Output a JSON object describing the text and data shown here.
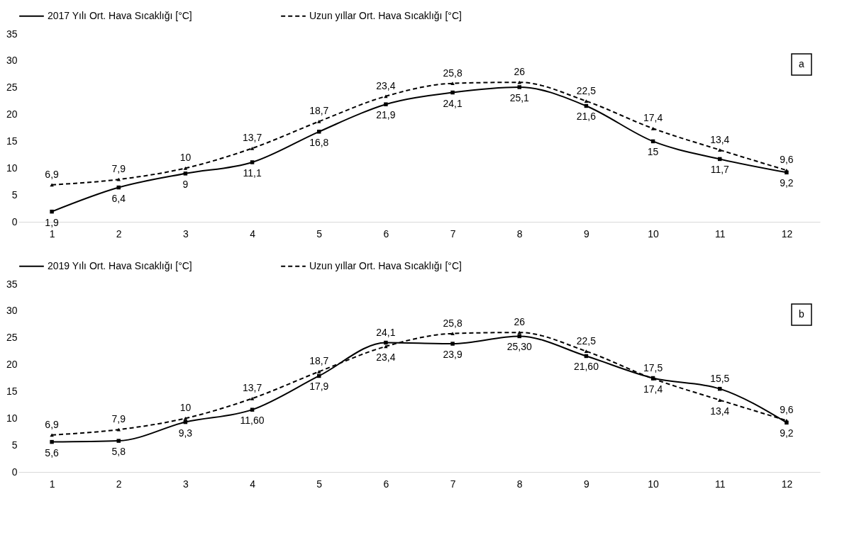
{
  "chart_data": [
    {
      "type": "line",
      "categories": [
        "1",
        "2",
        "3",
        "4",
        "5",
        "6",
        "7",
        "8",
        "9",
        "10",
        "11",
        "12"
      ],
      "ylim": [
        0,
        35
      ],
      "yticks": [
        0,
        5,
        10,
        15,
        20,
        25,
        30,
        35
      ],
      "grid": false,
      "legend": "top",
      "annotations": [
        "a"
      ],
      "series": [
        {
          "name": "2017 Yılı Ort. Hava Sıcaklığı [°C]",
          "color": "#000000",
          "marker": "square",
          "line_style": "solid",
          "values": [
            1.9,
            6.4,
            9,
            11.1,
            16.8,
            21.9,
            24.1,
            25.1,
            21.6,
            15,
            11.7,
            9.2
          ],
          "value_labels": [
            "1,9",
            "6,4",
            "9",
            "11,1",
            "16,8",
            "21,9",
            "24,1",
            "25,1",
            "21,6",
            "15",
            "11,7",
            "9,2"
          ]
        },
        {
          "name": "Uzun yıllar Ort. Hava Sıcaklığı [°C]",
          "color": "#000000",
          "marker": "triangle",
          "line_style": "dashed",
          "values": [
            6.9,
            7.9,
            10,
            13.7,
            18.7,
            23.4,
            25.8,
            26,
            22.5,
            17.4,
            13.4,
            9.6
          ],
          "value_labels": [
            "6,9",
            "7,9",
            "10",
            "13,7",
            "18,7",
            "23,4",
            "25,8",
            "26",
            "22,5",
            "17,4",
            "13,4",
            "9,6"
          ]
        }
      ]
    },
    {
      "type": "line",
      "categories": [
        "1",
        "2",
        "3",
        "4",
        "5",
        "6",
        "7",
        "8",
        "9",
        "10",
        "11",
        "12"
      ],
      "ylim": [
        0,
        35
      ],
      "yticks": [
        0,
        5,
        10,
        15,
        20,
        25,
        30,
        35
      ],
      "grid": false,
      "legend": "top",
      "annotations": [
        "b"
      ],
      "series": [
        {
          "name": "2019 Yılı Ort. Hava Sıcaklığı [°C]",
          "color": "#000000",
          "marker": "square",
          "line_style": "solid",
          "values": [
            5.6,
            5.8,
            9.3,
            11.6,
            17.9,
            24.1,
            23.9,
            25.3,
            21.6,
            17.5,
            15.5,
            9.2
          ],
          "value_labels": [
            "5,6",
            "5,8",
            "9,3",
            "11,60",
            "17,9",
            "24,1",
            "23,9",
            "25,30",
            "21,60",
            "17,5",
            "15,5",
            "9,2"
          ]
        },
        {
          "name": "Uzun yıllar Ort. Hava Sıcaklığı [°C]",
          "color": "#000000",
          "marker": "triangle",
          "line_style": "dashed",
          "values": [
            6.9,
            7.9,
            10,
            13.7,
            18.7,
            23.4,
            25.8,
            26,
            22.5,
            17.4,
            13.4,
            9.6
          ],
          "value_labels": [
            "6,9",
            "7,9",
            "10",
            "13,7",
            "18,7",
            "23,4",
            "25,8",
            "26",
            "22,5",
            "17,4",
            "13,4",
            "9,6"
          ]
        }
      ]
    }
  ]
}
